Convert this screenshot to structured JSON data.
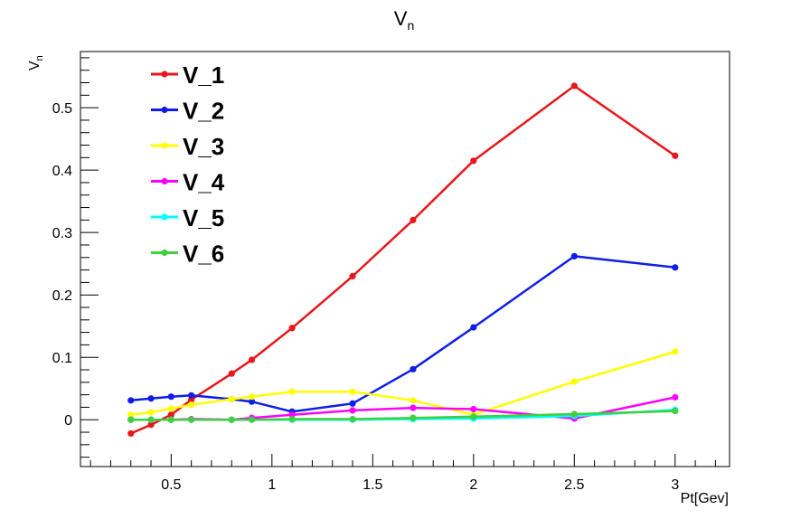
{
  "chart_data": {
    "type": "line",
    "title": "V",
    "title_subscript": "n",
    "xlabel": "Pt[Gev]",
    "ylabel": "V",
    "ylabel_subscript": "n",
    "xlim": [
      0.05,
      3.27
    ],
    "ylim": [
      -0.075,
      0.59
    ],
    "x_ticks": [
      0.5,
      1,
      1.5,
      2,
      2.5,
      3
    ],
    "x_tick_labels": [
      "0.5",
      "1",
      "1.5",
      "2",
      "2.5",
      "3"
    ],
    "y_ticks": [
      0,
      0.1,
      0.2,
      0.3,
      0.4,
      0.5
    ],
    "y_tick_labels": [
      "0",
      "0.1",
      "0.2",
      "0.3",
      "0.4",
      "0.5"
    ],
    "grid": false,
    "legend_position": "top-left",
    "x": [
      0.3,
      0.4,
      0.5,
      0.6,
      0.8,
      0.9,
      1.1,
      1.4,
      1.7,
      2.0,
      2.5,
      3.0
    ],
    "series": [
      {
        "name": "V_1",
        "color": "#e8171b",
        "values": [
          -0.022,
          -0.008,
          0.008,
          0.032,
          0.074,
          0.096,
          0.147,
          0.23,
          0.32,
          0.415,
          0.535,
          0.423
        ]
      },
      {
        "name": "V_2",
        "color": "#0f1ee6",
        "values": [
          0.031,
          0.034,
          0.037,
          0.039,
          0.033,
          0.029,
          0.013,
          0.026,
          0.081,
          0.148,
          0.262,
          0.244
        ]
      },
      {
        "name": "V_3",
        "color": "#ffff00",
        "values": [
          0.008,
          0.012,
          0.018,
          0.024,
          0.033,
          0.037,
          0.045,
          0.045,
          0.031,
          0.008,
          0.061,
          0.109
        ]
      },
      {
        "name": "V_4",
        "color": "#ff00ff",
        "values": [
          0.0,
          0.0,
          0.0,
          0.001,
          0.0,
          0.003,
          0.008,
          0.015,
          0.019,
          0.017,
          0.002,
          0.036
        ]
      },
      {
        "name": "V_5",
        "color": "#00ffff",
        "values": [
          0.0,
          0.0,
          0.0,
          0.0,
          0.0,
          0.0,
          0.0,
          0.0,
          0.001,
          0.002,
          0.006,
          0.016
        ]
      },
      {
        "name": "V_6",
        "color": "#3fcf3f",
        "values": [
          0.0,
          0.0,
          0.0,
          0.0,
          0.0,
          0.0,
          0.001,
          0.001,
          0.003,
          0.005,
          0.009,
          0.014
        ]
      }
    ]
  }
}
